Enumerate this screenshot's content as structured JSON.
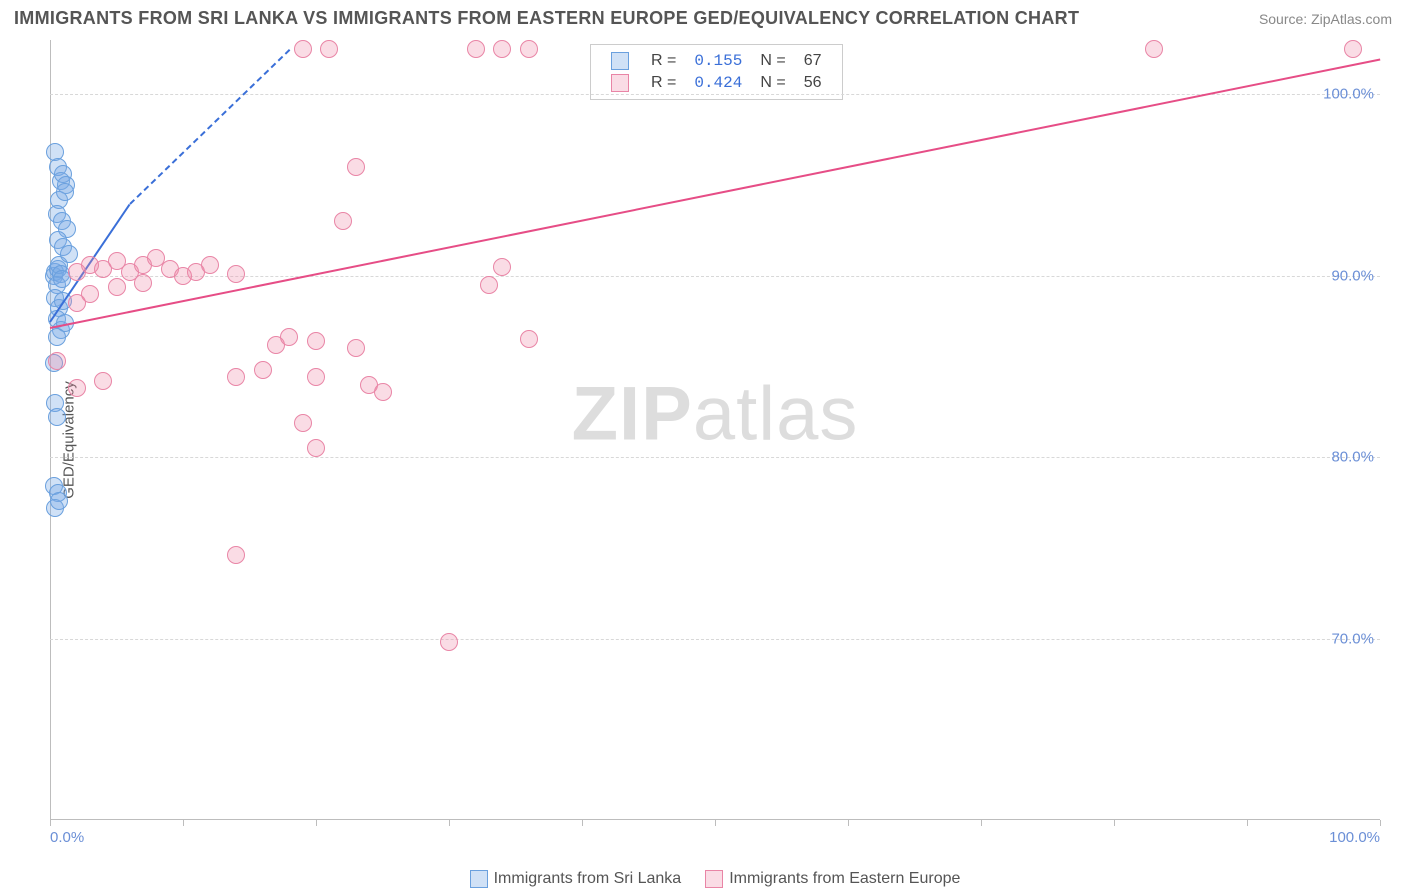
{
  "title": "IMMIGRANTS FROM SRI LANKA VS IMMIGRANTS FROM EASTERN EUROPE GED/EQUIVALENCY CORRELATION CHART",
  "source": "Source: ZipAtlas.com",
  "ylabel": "GED/Equivalency",
  "watermark": {
    "bold": "ZIP",
    "rest": "atlas"
  },
  "colors": {
    "blue_fill": "rgba(120,170,230,0.35)",
    "blue_stroke": "#6aa0de",
    "pink_fill": "rgba(240,140,170,0.30)",
    "pink_stroke": "#e985a6",
    "blue_line": "#3a6fd8",
    "pink_line": "#e64d86",
    "grid": "#d8d8d8",
    "tick_text": "#6b8fd6"
  },
  "chart": {
    "type": "scatter",
    "x_range": [
      0,
      100
    ],
    "y_range": [
      60,
      103
    ],
    "y_ticks": [
      70,
      80,
      90,
      100
    ],
    "y_tick_labels": [
      "70.0%",
      "80.0%",
      "90.0%",
      "100.0%"
    ],
    "x_ticks_labeled": [
      {
        "x": 0,
        "label": "0.0%"
      },
      {
        "x": 100,
        "label": "100.0%"
      }
    ],
    "x_minor_step": 10,
    "marker_radius": 9,
    "series": [
      {
        "name": "Immigrants from Sri Lanka",
        "color_fill": "rgba(120,170,230,0.35)",
        "color_stroke": "#6aa0de",
        "trend": {
          "x1": 0,
          "y1": 87.5,
          "x2": 6,
          "y2": 94,
          "dashed_to": {
            "x": 18,
            "y": 102.5
          },
          "color": "#3a6fd8",
          "width": 2
        },
        "points": [
          [
            0.3,
            90
          ],
          [
            0.4,
            90.2
          ],
          [
            0.6,
            90.4
          ],
          [
            0.7,
            90.6
          ],
          [
            0.8,
            90.1
          ],
          [
            0.5,
            89.5
          ],
          [
            0.9,
            89.8
          ],
          [
            0.4,
            96.8
          ],
          [
            0.6,
            96.0
          ],
          [
            0.8,
            95.2
          ],
          [
            1.0,
            95.6
          ],
          [
            1.2,
            95.0
          ],
          [
            0.7,
            94.2
          ],
          [
            1.1,
            94.6
          ],
          [
            0.5,
            93.4
          ],
          [
            0.9,
            93.0
          ],
          [
            1.3,
            92.6
          ],
          [
            0.6,
            92.0
          ],
          [
            1.0,
            91.6
          ],
          [
            1.4,
            91.2
          ],
          [
            0.4,
            88.8
          ],
          [
            0.7,
            88.2
          ],
          [
            1.0,
            88.6
          ],
          [
            0.5,
            87.6
          ],
          [
            0.8,
            87.0
          ],
          [
            1.1,
            87.4
          ],
          [
            0.5,
            86.6
          ],
          [
            0.3,
            85.2
          ],
          [
            0.4,
            83.0
          ],
          [
            0.5,
            82.2
          ],
          [
            0.3,
            78.4
          ],
          [
            0.6,
            78.0
          ],
          [
            0.4,
            77.2
          ],
          [
            0.7,
            77.6
          ]
        ]
      },
      {
        "name": "Immigrants from Eastern Europe",
        "color_fill": "rgba(240,140,170,0.30)",
        "color_stroke": "#e985a6",
        "trend": {
          "x1": 0,
          "y1": 87.2,
          "x2": 100,
          "y2": 102.0,
          "color": "#e64d86",
          "width": 2.5
        },
        "points": [
          [
            19,
            102.5
          ],
          [
            21,
            102.5
          ],
          [
            32,
            102.5
          ],
          [
            34,
            102.5
          ],
          [
            36,
            102.5
          ],
          [
            83,
            102.5
          ],
          [
            98,
            102.5
          ],
          [
            23,
            96
          ],
          [
            22,
            93
          ],
          [
            34,
            90.5
          ],
          [
            33,
            89.5
          ],
          [
            36,
            86.5
          ],
          [
            2,
            90.2
          ],
          [
            3,
            90.6
          ],
          [
            4,
            90.4
          ],
          [
            5,
            90.8
          ],
          [
            6,
            90.2
          ],
          [
            7,
            90.6
          ],
          [
            8,
            91
          ],
          [
            9,
            90.4
          ],
          [
            10,
            90
          ],
          [
            11,
            90.2
          ],
          [
            12,
            90.6
          ],
          [
            14,
            90.1
          ],
          [
            3,
            89
          ],
          [
            5,
            89.4
          ],
          [
            7,
            89.6
          ],
          [
            2,
            88.5
          ],
          [
            0.5,
            85.3
          ],
          [
            2,
            83.8
          ],
          [
            4,
            84.2
          ],
          [
            14,
            84.4
          ],
          [
            16,
            84.8
          ],
          [
            17,
            86.2
          ],
          [
            18,
            86.6
          ],
          [
            20,
            86.4
          ],
          [
            20,
            84.4
          ],
          [
            23,
            86.0
          ],
          [
            24,
            84.0
          ],
          [
            25,
            83.6
          ],
          [
            19,
            81.9
          ],
          [
            20,
            80.5
          ],
          [
            14,
            74.6
          ],
          [
            30,
            69.8
          ]
        ]
      }
    ]
  },
  "statbox": {
    "rows": [
      {
        "swatch_fill": "rgba(120,170,230,0.35)",
        "swatch_stroke": "#6aa0de",
        "r_label": "R =",
        "r_val": "0.155",
        "n_label": "N =",
        "n_val": "67"
      },
      {
        "swatch_fill": "rgba(240,140,170,0.30)",
        "swatch_stroke": "#e985a6",
        "r_label": "R =",
        "r_val": "0.424",
        "n_label": "N =",
        "n_val": "56"
      }
    ]
  },
  "bottom_legend": [
    {
      "swatch_fill": "rgba(120,170,230,0.35)",
      "swatch_stroke": "#6aa0de",
      "label": "Immigrants from Sri Lanka"
    },
    {
      "swatch_fill": "rgba(240,140,170,0.30)",
      "swatch_stroke": "#e985a6",
      "label": "Immigrants from Eastern Europe"
    }
  ]
}
